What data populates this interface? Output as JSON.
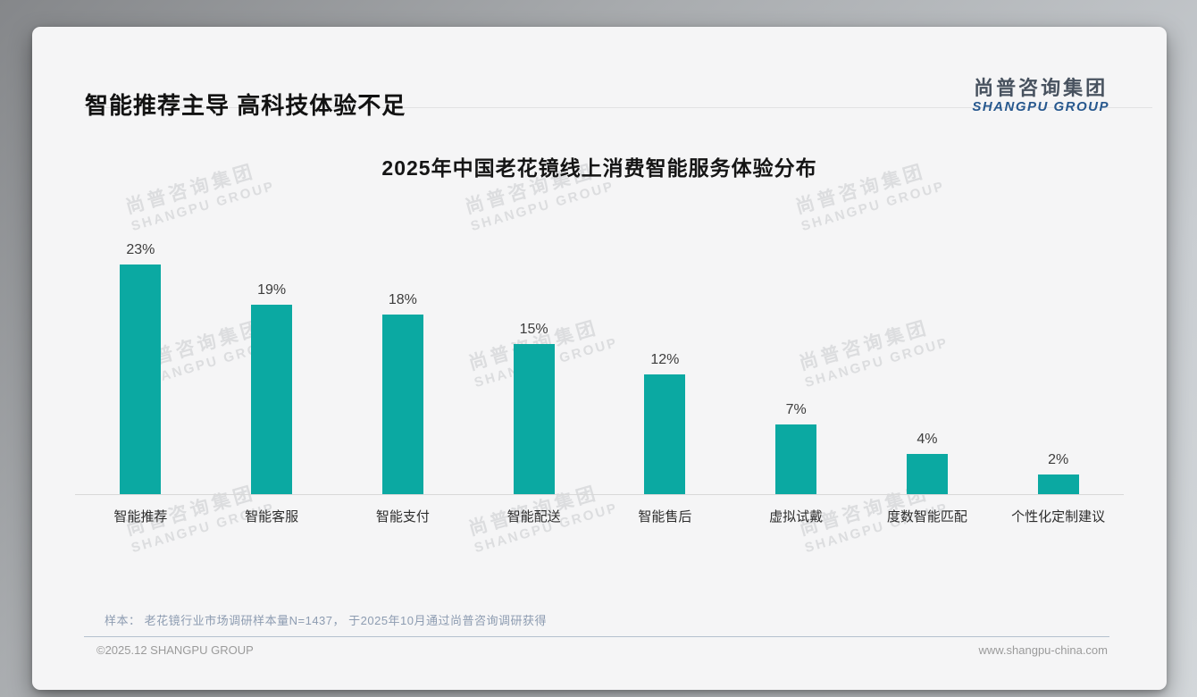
{
  "page": {
    "title": "智能推荐主导 高科技体验不足",
    "logo": {
      "cn": "尚普咨询集团",
      "en": "SHANGPU GROUP"
    },
    "watermark": {
      "cn": "尚普咨询集团",
      "en": "SHANGPU GROUP"
    }
  },
  "chart_data": {
    "type": "bar",
    "title": "2025年中国老花镜线上消费智能服务体验分布",
    "categories": [
      "智能推荐",
      "智能客服",
      "智能支付",
      "智能配送",
      "智能售后",
      "虚拟试戴",
      "度数智能匹配",
      "个性化定制建议"
    ],
    "values": [
      23,
      19,
      18,
      15,
      12,
      7,
      4,
      2
    ],
    "data_labels": [
      "23%",
      "19%",
      "18%",
      "15%",
      "12%",
      "7%",
      "4%",
      "2%"
    ],
    "unit": "%",
    "ylim": [
      0,
      25
    ],
    "grid": false,
    "legend": "none",
    "bar_color": "#0BA9A2",
    "xlabel": "",
    "ylabel": ""
  },
  "footnote": "样本： 老花镜行业市场调研样本量N=1437， 于2025年10月通过尚普咨询调研获得",
  "footer": {
    "left": "©2025.12 SHANGPU GROUP",
    "right": "www.shangpu-china.com"
  },
  "colors": {
    "bar": "#0BA9A2",
    "logo_blue": "#27588E",
    "card_bg": "#F5F5F6"
  }
}
